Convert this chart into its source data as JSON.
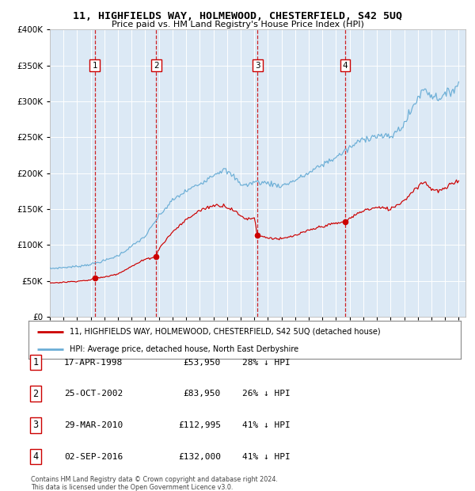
{
  "title": "11, HIGHFIELDS WAY, HOLMEWOOD, CHESTERFIELD, S42 5UQ",
  "subtitle": "Price paid vs. HM Land Registry's House Price Index (HPI)",
  "legend_property": "11, HIGHFIELDS WAY, HOLMEWOOD, CHESTERFIELD, S42 5UQ (detached house)",
  "legend_hpi": "HPI: Average price, detached house, North East Derbyshire",
  "footer1": "Contains HM Land Registry data © Crown copyright and database right 2024.",
  "footer2": "This data is licensed under the Open Government Licence v3.0.",
  "sales": [
    {
      "label": "1",
      "date": "17-APR-1998",
      "price": 53950,
      "pct": "28%",
      "direction": "↓"
    },
    {
      "label": "2",
      "date": "25-OCT-2002",
      "price": 83950,
      "pct": "26%",
      "direction": "↓"
    },
    {
      "label": "3",
      "date": "29-MAR-2010",
      "price": 112995,
      "pct": "41%",
      "direction": "↓"
    },
    {
      "label": "4",
      "date": "02-SEP-2016",
      "price": 132000,
      "pct": "41%",
      "direction": "↓"
    }
  ],
  "sale_dates_decimal": [
    1998.29,
    2002.81,
    2010.24,
    2016.67
  ],
  "sale_prices": [
    53950,
    83950,
    112995,
    132000
  ],
  "hpi_color": "#6baed6",
  "property_color": "#cc0000",
  "vline_color": "#cc0000",
  "label_box_color": "#cc0000",
  "background_color": "#ffffff",
  "plot_bg_color": "#dce9f5",
  "grid_color": "#ffffff",
  "ylim": [
    0,
    400000
  ],
  "xlim_start": 1995.0,
  "xlim_end": 2025.5,
  "yticks": [
    0,
    50000,
    100000,
    150000,
    200000,
    250000,
    300000,
    350000,
    400000
  ],
  "hpi_anchors": {
    "1995.0": 67000,
    "1996.0": 68500,
    "1997.0": 70000,
    "1998.0": 73000,
    "1999.0": 78000,
    "2000.0": 85000,
    "2001.0": 98000,
    "2002.0": 112000,
    "2003.0": 140000,
    "2004.0": 162000,
    "2005.0": 175000,
    "2006.0": 185000,
    "2007.0": 198000,
    "2007.75": 205000,
    "2008.5": 195000,
    "2009.0": 185000,
    "2009.5": 183000,
    "2010.0": 188000,
    "2011.0": 186000,
    "2012.0": 182000,
    "2013.0": 190000,
    "2014.0": 200000,
    "2015.0": 212000,
    "2016.0": 222000,
    "2017.0": 235000,
    "2018.0": 248000,
    "2019.0": 252000,
    "2020.0": 250000,
    "2021.0": 268000,
    "2022.0": 305000,
    "2022.5": 318000,
    "2023.0": 308000,
    "2023.5": 305000,
    "2024.0": 308000,
    "2024.5": 315000,
    "2025.0": 325000
  },
  "prop_anchors": {
    "1995.0": 47000,
    "1996.0": 48000,
    "1997.0": 49500,
    "1998.0": 51000,
    "1998.29": 53950,
    "1999.0": 55000,
    "2000.0": 60000,
    "2001.0": 70000,
    "2002.0": 80000,
    "2002.81": 83950,
    "2003.0": 95000,
    "2004.0": 118000,
    "2005.0": 135000,
    "2006.0": 148000,
    "2007.0": 155000,
    "2007.75": 155000,
    "2008.5": 148000,
    "2009.0": 140000,
    "2009.5": 136000,
    "2010.0": 138000,
    "2010.24": 112995,
    "2011.0": 110000,
    "2012.0": 108000,
    "2013.0": 113000,
    "2014.0": 120000,
    "2015.0": 126000,
    "2016.0": 130000,
    "2016.67": 132000,
    "2017.0": 137000,
    "2018.0": 148000,
    "2019.0": 152000,
    "2020.0": 150000,
    "2021.0": 162000,
    "2022.0": 182000,
    "2022.5": 188000,
    "2023.0": 178000,
    "2023.5": 175000,
    "2024.0": 178000,
    "2024.5": 185000,
    "2025.0": 190000
  }
}
